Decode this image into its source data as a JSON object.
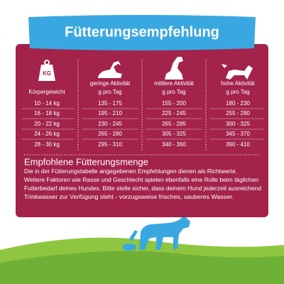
{
  "title": "Fütterungsempfehlung",
  "table": {
    "icon_label": "KG",
    "headers": [
      {
        "name": "Körpergewicht"
      },
      {
        "name": "geringe Aktivität",
        "unit": "g pro Tag"
      },
      {
        "name": "mittlere Aktivität",
        "unit": "g pro Tag"
      },
      {
        "name": "hohe Aktivität",
        "unit": "g pro Tag"
      }
    ],
    "rows": [
      [
        "10 - 14 kg",
        "135 - 175",
        "155 - 200",
        "180 - 230"
      ],
      [
        "16 - 18 kg",
        "195 - 210",
        "225 - 245",
        "255 - 280"
      ],
      [
        "20 - 22 kg",
        "230 - 245",
        "265 - 285",
        "300 - 325"
      ],
      [
        "24 - 26 kg",
        "265 - 280",
        "305 - 325",
        "345 - 370"
      ],
      [
        "28 - 30 kg",
        "295 - 310",
        "340 - 360",
        "390 - 410"
      ]
    ]
  },
  "note": {
    "heading": "Empfohlene Fütterungsmenge",
    "lines": [
      "Die in der Fütterungstabelle angegebenen Empfehlungen dienen als Richtwerte.",
      "Weitere Faktoren wie Rasse und Geschlecht spielen ebenfalls eine Rolle beim täglichen",
      "Futterbedarf deines Hundes. Bitte stelle sicher, dass deinem Hund jederzeit ausreichend",
      "Trinkwasser zur Verfügung steht - vorzugsweise frisches, sauberes Wasser."
    ]
  }
}
